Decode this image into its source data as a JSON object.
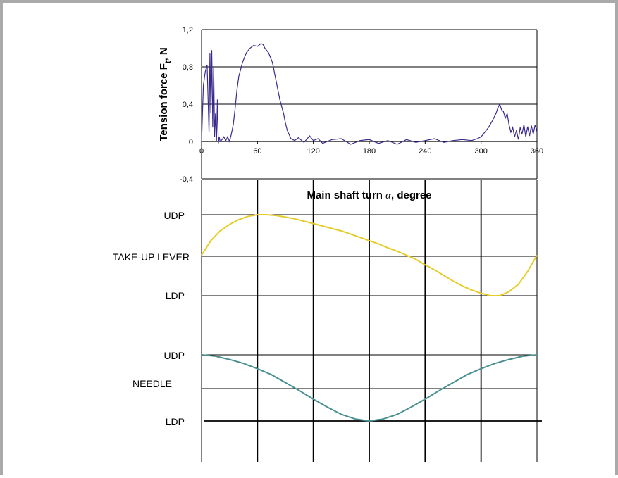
{
  "chart_data": {
    "type": "line",
    "top_panel": {
      "ylabel_main": "Tension force F",
      "ylabel_sub": "t",
      "ylabel_unit": ", N",
      "x_ticks": [
        "0",
        "60",
        "120",
        "180",
        "240",
        "300",
        "360"
      ],
      "y_ticks": [
        "1,2",
        "0,8",
        "0,4",
        "0",
        "-0,4"
      ],
      "xlim": [
        0,
        360
      ],
      "ylim": [
        -0.4,
        1.2
      ],
      "grid": "horizontal",
      "series": [
        {
          "color": "#3a2a8c",
          "x": [
            0,
            2,
            4,
            6,
            8,
            9,
            10,
            11,
            12,
            13,
            14,
            15,
            16,
            17,
            18,
            19,
            20,
            22,
            24,
            26,
            28,
            30,
            32,
            34,
            36,
            38,
            40,
            44,
            48,
            52,
            56,
            60,
            64,
            66,
            68,
            72,
            76,
            80,
            84,
            88,
            90,
            92,
            96,
            100,
            104,
            110,
            116,
            120,
            125,
            130,
            140,
            150,
            160,
            170,
            180,
            190,
            200,
            210,
            220,
            230,
            240,
            250,
            260,
            270,
            280,
            290,
            296,
            300,
            304,
            308,
            312,
            316,
            318,
            320,
            322,
            324,
            326,
            328,
            330,
            332,
            334,
            336,
            338,
            340,
            342,
            344,
            346,
            348,
            350,
            352,
            354,
            356,
            358,
            360
          ],
          "y": [
            0.0,
            0.6,
            0.75,
            0.82,
            0.1,
            0.95,
            0.3,
            0.98,
            0.15,
            0.8,
            0.05,
            0.3,
            0.0,
            0.45,
            -0.02,
            0.05,
            0.0,
            0.02,
            0.05,
            0.01,
            0.05,
            0.0,
            0.08,
            0.18,
            0.35,
            0.55,
            0.7,
            0.85,
            0.95,
            1.0,
            1.03,
            1.02,
            1.05,
            1.04,
            1.0,
            0.95,
            0.85,
            0.65,
            0.45,
            0.3,
            0.2,
            0.12,
            0.03,
            0.01,
            0.04,
            -0.01,
            0.06,
            0.01,
            0.03,
            -0.02,
            0.02,
            0.03,
            -0.03,
            0.01,
            0.02,
            -0.02,
            0.01,
            -0.03,
            0.02,
            -0.01,
            0.01,
            0.03,
            -0.01,
            0.01,
            0.02,
            0.01,
            0.03,
            0.05,
            0.1,
            0.15,
            0.22,
            0.3,
            0.36,
            0.4,
            0.34,
            0.32,
            0.25,
            0.3,
            0.18,
            0.1,
            0.15,
            0.05,
            0.12,
            0.02,
            0.15,
            0.08,
            0.18,
            0.05,
            0.16,
            0.06,
            0.17,
            0.08,
            0.18,
            0.1
          ]
        }
      ]
    },
    "lower_panel": {
      "xlabel_prefix": "Main shaft turn ",
      "xlabel_symbol": "α",
      "xlabel_suffix": ", degree",
      "x_range": [
        0,
        360
      ],
      "vertical_gridlines_at": [
        60,
        120,
        180,
        240,
        300
      ],
      "take_up_lever": {
        "label": "TAKE-UP LEVER",
        "upper_label": "UDP",
        "lower_label": "LDP",
        "color": "#e6cc2a",
        "x": [
          0,
          10,
          20,
          30,
          40,
          50,
          60,
          70,
          80,
          90,
          100,
          110,
          120,
          130,
          140,
          150,
          160,
          170,
          180,
          190,
          200,
          210,
          220,
          230,
          240,
          250,
          260,
          270,
          280,
          290,
          300,
          310,
          320,
          330,
          340,
          350,
          360
        ],
        "y": [
          0.5,
          0.68,
          0.8,
          0.88,
          0.94,
          0.98,
          1.0,
          1.0,
          0.99,
          0.97,
          0.95,
          0.92,
          0.89,
          0.86,
          0.83,
          0.8,
          0.76,
          0.72,
          0.68,
          0.64,
          0.59,
          0.55,
          0.5,
          0.45,
          0.38,
          0.32,
          0.25,
          0.18,
          0.12,
          0.07,
          0.03,
          0.0,
          0.0,
          0.05,
          0.14,
          0.3,
          0.5
        ]
      },
      "needle": {
        "label": "NEEDLE",
        "upper_label": "UDP",
        "lower_label": "LDP",
        "color": "#4a9090",
        "x": [
          0,
          15,
          30,
          45,
          60,
          75,
          90,
          105,
          120,
          135,
          150,
          165,
          180,
          195,
          210,
          225,
          240,
          255,
          270,
          285,
          300,
          315,
          330,
          345,
          360
        ],
        "y": [
          1.0,
          0.98,
          0.93,
          0.87,
          0.79,
          0.7,
          0.58,
          0.46,
          0.33,
          0.21,
          0.1,
          0.03,
          0.0,
          0.03,
          0.1,
          0.21,
          0.33,
          0.46,
          0.58,
          0.7,
          0.79,
          0.87,
          0.93,
          0.98,
          1.0
        ]
      }
    }
  }
}
